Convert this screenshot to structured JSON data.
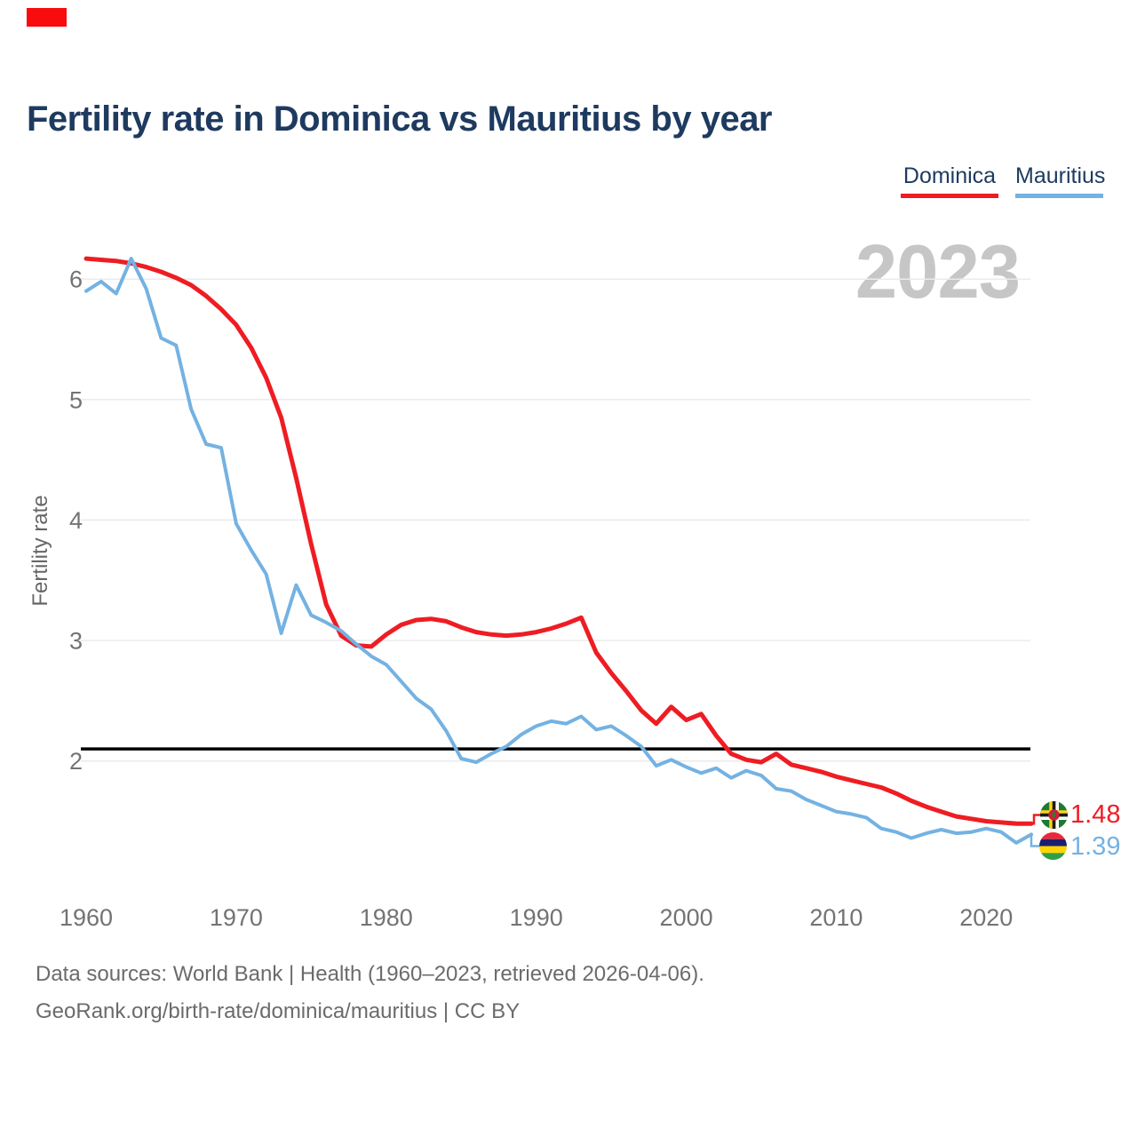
{
  "artifact_marker": {
    "color": "#f90c0e"
  },
  "title": "Fertility rate in Dominica vs Mauritius by year",
  "legend": {
    "items": [
      {
        "label": "Dominica",
        "color": "#ee1d23"
      },
      {
        "label": "Mauritius",
        "color": "#74b2e2"
      }
    ]
  },
  "watermark": "2023",
  "end_labels": [
    {
      "series": "Dominica",
      "value": "1.48",
      "color": "#ee1d23",
      "flag": "dominica-flag"
    },
    {
      "series": "Mauritius",
      "value": "1.39",
      "color": "#74b2e2",
      "flag": "mauritius-flag"
    }
  ],
  "footer": {
    "line1": "Data sources: World Bank | Health (1960–2023, retrieved 2026-04-06).",
    "line2": "GeoRank.org/birth-rate/dominica/mauritius | CC BY"
  },
  "chart_data": {
    "type": "line",
    "title": "Fertility rate in Dominica vs Mauritius by year",
    "xlabel": "",
    "ylabel": "Fertility rate",
    "xlim": [
      1959.5,
      2026
    ],
    "ylim": [
      1.25,
      6.35
    ],
    "grid": "horizontal",
    "legend_position": "top-right",
    "yticks": [
      2,
      3,
      4,
      5,
      6
    ],
    "xticks": [
      1960,
      1970,
      1980,
      1990,
      2000,
      2010,
      2020
    ],
    "reference_line": {
      "value": 2.1,
      "color": "#000000"
    },
    "gridline_color": "#ebebeb",
    "tick_color": "#737373",
    "x": [
      1960,
      1961,
      1962,
      1963,
      1964,
      1965,
      1966,
      1967,
      1968,
      1969,
      1970,
      1971,
      1972,
      1973,
      1974,
      1975,
      1976,
      1977,
      1978,
      1979,
      1980,
      1981,
      1982,
      1983,
      1984,
      1985,
      1986,
      1987,
      1988,
      1989,
      1990,
      1991,
      1992,
      1993,
      1994,
      1995,
      1996,
      1997,
      1998,
      1999,
      2000,
      2001,
      2002,
      2003,
      2004,
      2005,
      2006,
      2007,
      2008,
      2009,
      2010,
      2011,
      2012,
      2013,
      2014,
      2015,
      2016,
      2017,
      2018,
      2019,
      2020,
      2021,
      2022,
      2023
    ],
    "series": [
      {
        "name": "Dominica",
        "color": "#ee1d23",
        "stroke_width": 5,
        "values": [
          6.17,
          6.16,
          6.15,
          6.13,
          6.1,
          6.06,
          6.01,
          5.95,
          5.86,
          5.75,
          5.62,
          5.43,
          5.18,
          4.85,
          4.35,
          3.8,
          3.3,
          3.04,
          2.96,
          2.95,
          3.05,
          3.13,
          3.17,
          3.18,
          3.16,
          3.11,
          3.07,
          3.05,
          3.04,
          3.05,
          3.07,
          3.1,
          3.14,
          3.19,
          2.9,
          2.73,
          2.58,
          2.42,
          2.31,
          2.45,
          2.34,
          2.39,
          2.21,
          2.06,
          2.01,
          1.99,
          2.06,
          1.97,
          1.94,
          1.91,
          1.87,
          1.84,
          1.81,
          1.78,
          1.73,
          1.67,
          1.62,
          1.58,
          1.54,
          1.52,
          1.5,
          1.49,
          1.48,
          1.48
        ]
      },
      {
        "name": "Mauritius",
        "color": "#74b2e2",
        "stroke_width": 4,
        "values": [
          5.9,
          5.98,
          5.88,
          6.17,
          5.92,
          5.51,
          5.45,
          4.92,
          4.63,
          4.6,
          3.97,
          3.75,
          3.55,
          3.06,
          3.46,
          3.21,
          3.15,
          3.08,
          2.97,
          2.87,
          2.8,
          2.66,
          2.52,
          2.43,
          2.25,
          2.02,
          1.99,
          2.06,
          2.12,
          2.22,
          2.29,
          2.33,
          2.31,
          2.37,
          2.26,
          2.29,
          2.21,
          2.12,
          1.96,
          2.01,
          1.95,
          1.9,
          1.94,
          1.86,
          1.92,
          1.88,
          1.77,
          1.75,
          1.68,
          1.63,
          1.58,
          1.56,
          1.53,
          1.44,
          1.41,
          1.36,
          1.4,
          1.43,
          1.4,
          1.41,
          1.44,
          1.41,
          1.32,
          1.39
        ]
      }
    ]
  }
}
